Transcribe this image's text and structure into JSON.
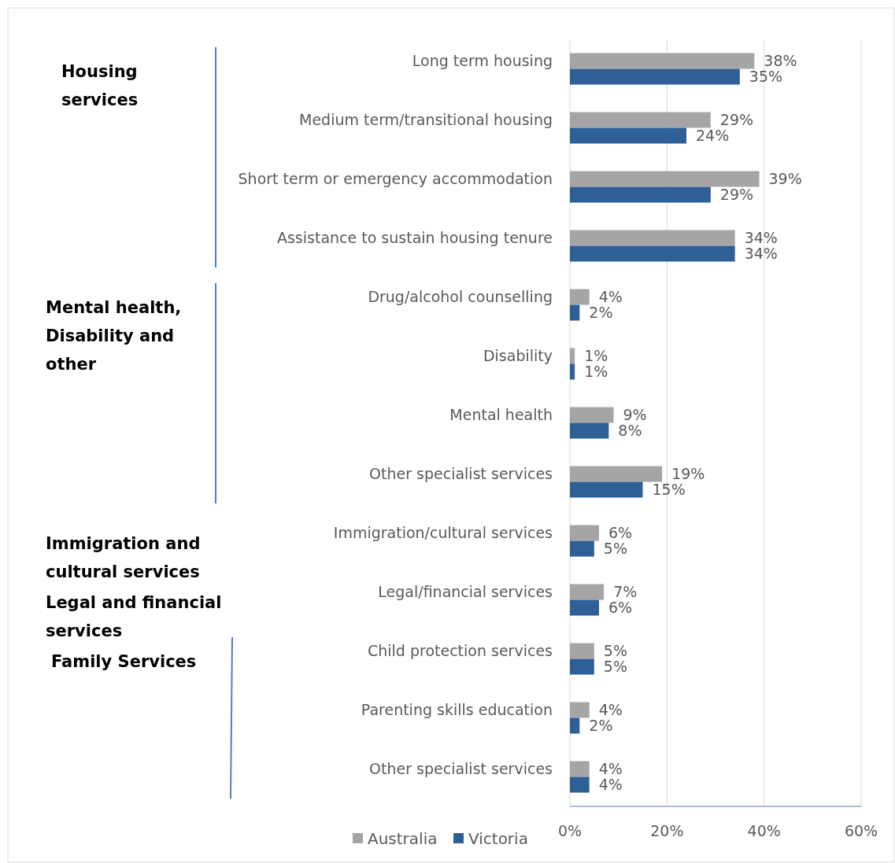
{
  "chart_data": {
    "type": "bar",
    "orientation": "horizontal",
    "categories": [
      "Long term housing",
      "Medium term/transitional housing",
      "Short term or emergency accommodation",
      "Assistance to sustain housing tenure",
      "Drug/alcohol counselling",
      "Disability",
      "Mental health",
      "Other specialist services",
      "Immigration/cultural services",
      "Legal/financial services",
      "Child protection services",
      "Parenting skills education",
      "Other specialist services"
    ],
    "series": [
      {
        "name": "Australia",
        "color": "#a5a5a5",
        "values": [
          38,
          29,
          39,
          34,
          4,
          1,
          9,
          19,
          6,
          7,
          5,
          4,
          4
        ],
        "value_labels": [
          "38%",
          "29%",
          "39%",
          "34%",
          "4%",
          "1%",
          "9%",
          "19%",
          "6%",
          "7%",
          "5%",
          "4%",
          "4%"
        ]
      },
      {
        "name": "Victoria",
        "color": "#2f5f97",
        "values": [
          35,
          24,
          29,
          34,
          2,
          1,
          8,
          15,
          5,
          6,
          5,
          2,
          4
        ],
        "value_labels": [
          "35%",
          "24%",
          "29%",
          "34%",
          "2%",
          "1%",
          "8%",
          "15%",
          "5%",
          "6%",
          "5%",
          "2%",
          "4%"
        ]
      }
    ],
    "xlim": [
      0,
      60
    ],
    "xticks": [
      {
        "value": 0,
        "label": "0%"
      },
      {
        "value": 20,
        "label": "20%"
      },
      {
        "value": 40,
        "label": "40%"
      },
      {
        "value": 60,
        "label": "60%"
      }
    ],
    "grid": "x",
    "legend": "bottom",
    "annotations": [
      "Housing services",
      "Mental health, Disability and other",
      "Immigration and cultural services",
      "Legal and financial services",
      "Family Services"
    ]
  }
}
